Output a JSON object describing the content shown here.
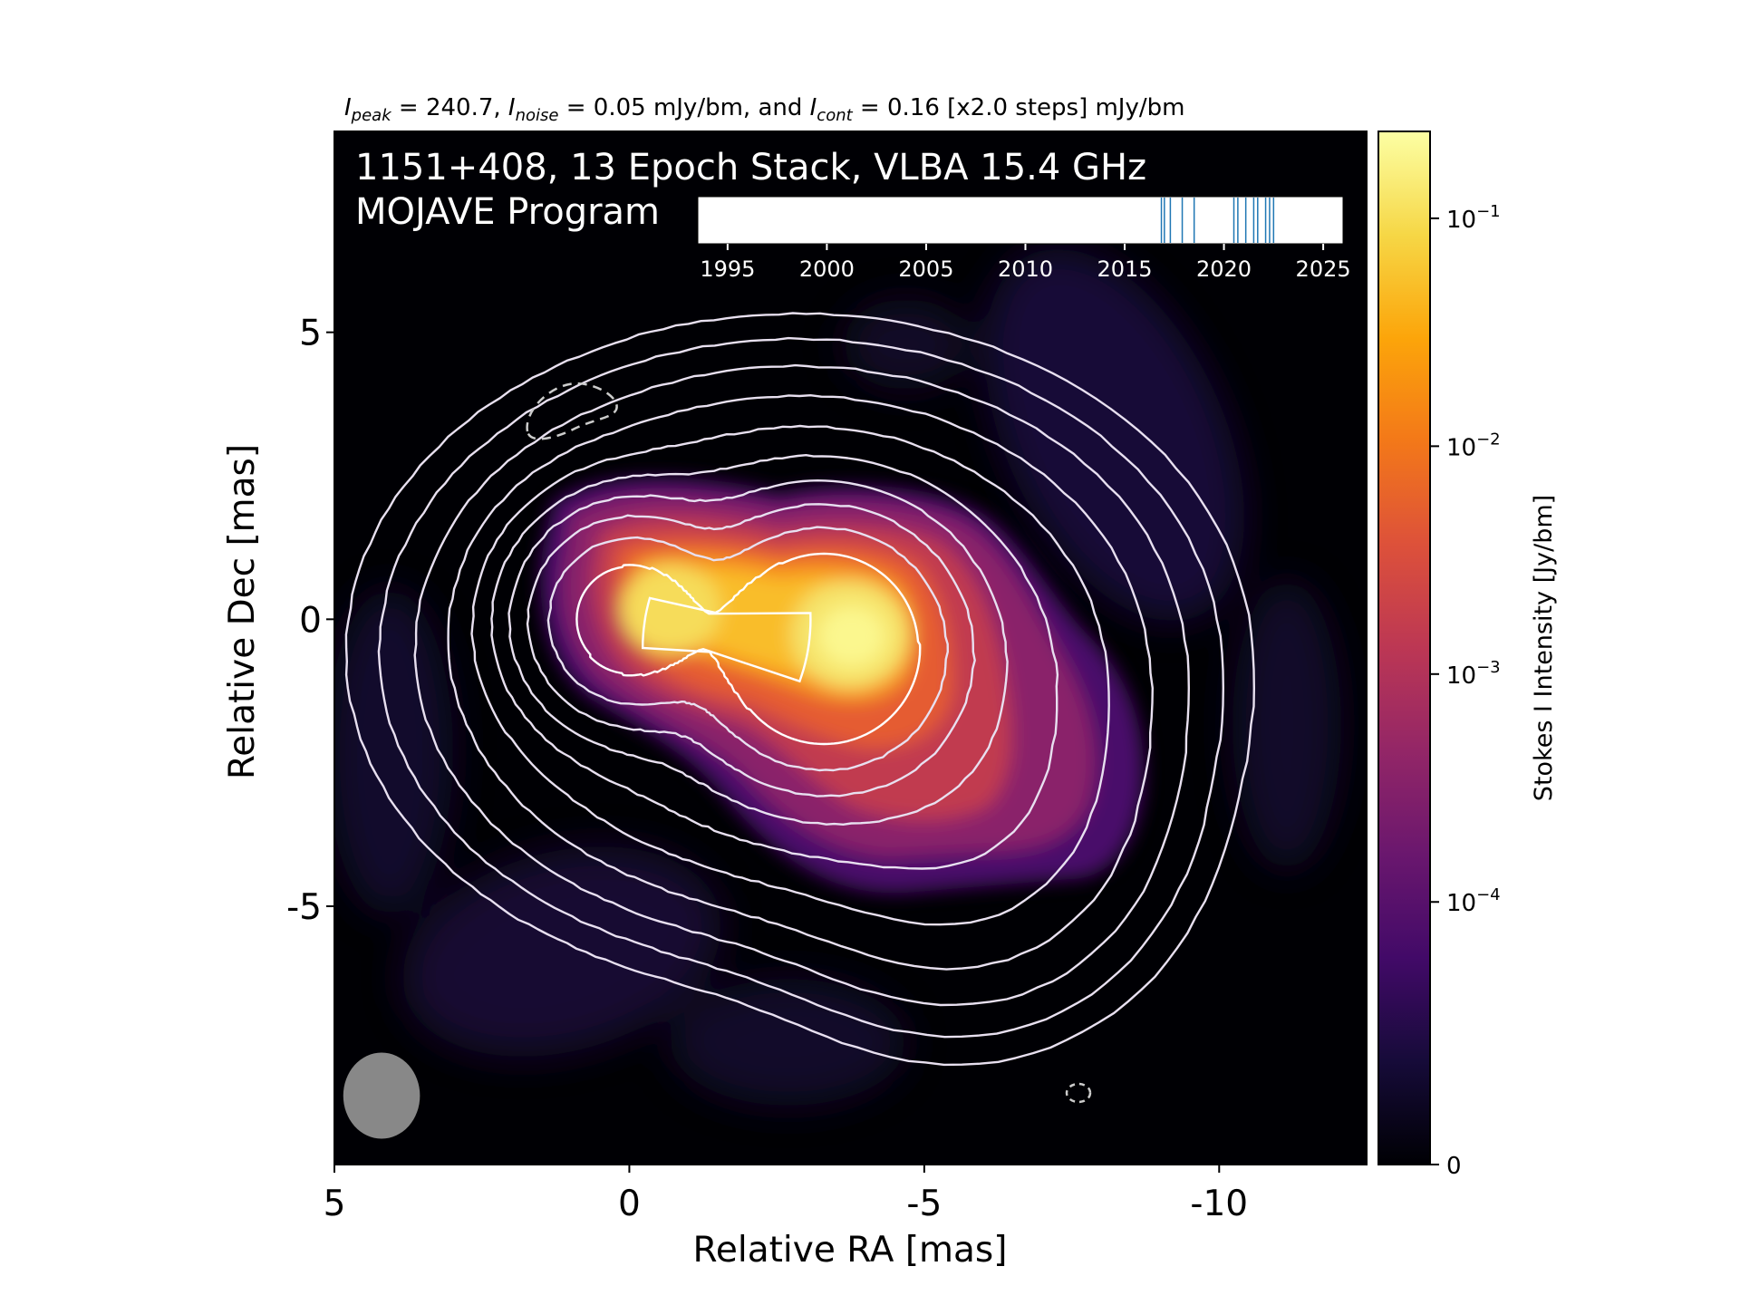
{
  "chart_data": {
    "type": "heatmap",
    "subtitle": {
      "peak_sym": "I",
      "peak_sub": "peak",
      "peak_val": " = 240.7, ",
      "noise_sym": "I",
      "noise_sub": "noise",
      "noise_val": " = 0.05 mJy/bm, and ",
      "cont_sym": "I",
      "cont_sub": "cont",
      "cont_val": " = 0.16 [x2.0 steps] mJy/bm"
    },
    "title_line1": "1151+408, 13 Epoch Stack, VLBA 15.4 GHz",
    "title_line2": "MOJAVE Program",
    "xlabel": "Relative RA [mas]",
    "ylabel": "Relative Dec [mas]",
    "xlim": [
      5.0,
      -12.5
    ],
    "ylim": [
      -9.5,
      8.5
    ],
    "xticks": [
      5,
      0,
      -5,
      -10
    ],
    "xtick_labels": [
      "5",
      "0",
      "-5",
      "-10"
    ],
    "yticks": [
      5,
      0,
      -5
    ],
    "ytick_labels": [
      "5",
      "0",
      "-5"
    ],
    "components": [
      {
        "ra": 0.0,
        "dec": 0.0,
        "flux_jy": 0.13
      },
      {
        "ra": -3.3,
        "dec": -0.5,
        "flux_jy": 0.2407
      },
      {
        "ra": -5.6,
        "dec": -3.3,
        "flux_jy": 0.004
      }
    ],
    "beam": {
      "ra": 4.2,
      "dec": -8.3,
      "major_mas": 1.5,
      "minor_mas": 1.3,
      "pa_deg": 0
    },
    "colorbar": {
      "label": "Stokes I Intensity [Jy/bm]",
      "colormap": "inferno",
      "ticks": [
        {
          "value": 0.1,
          "base": "10",
          "exp": "−1"
        },
        {
          "value": 0.01,
          "base": "10",
          "exp": "−2"
        },
        {
          "value": 0.001,
          "base": "10",
          "exp": "−3"
        },
        {
          "value": 0.0001,
          "base": "10",
          "exp": "−4"
        },
        {
          "value": 0,
          "base": "0",
          "exp": ""
        }
      ]
    },
    "epoch_timeline": {
      "xlim": [
        1993.5,
        2026.0
      ],
      "ticks": [
        1995,
        2000,
        2005,
        2010,
        2015,
        2020,
        2025
      ],
      "tick_labels": [
        "1995",
        "2000",
        "2005",
        "2010",
        "2015",
        "2020",
        "2025"
      ],
      "epochs": [
        2016.85,
        2017.0,
        2017.3,
        2017.9,
        2018.5,
        2020.5,
        2020.7,
        2021.1,
        2021.5,
        2021.7,
        2022.1,
        2022.3,
        2022.5
      ],
      "line_color": "#1f77b4"
    }
  }
}
